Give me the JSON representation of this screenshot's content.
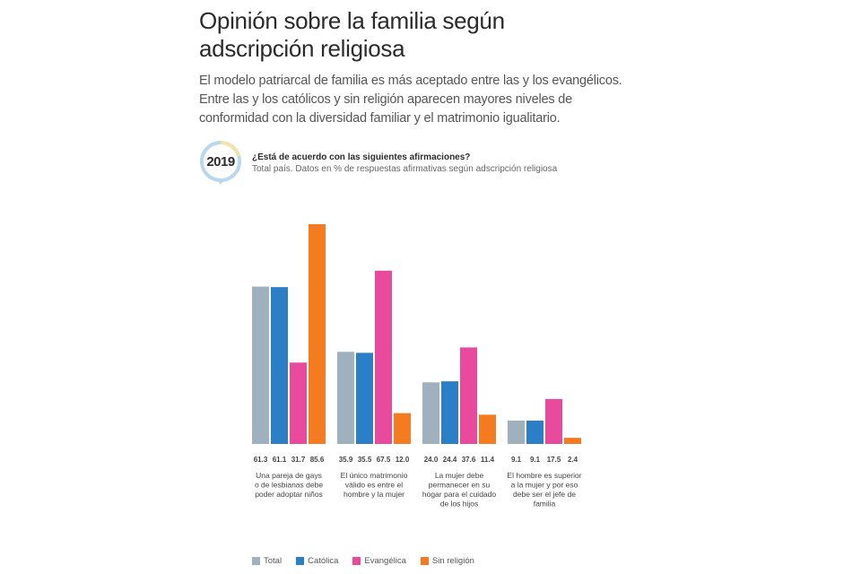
{
  "header": {
    "title": "Opinión sobre la familia según adscripción religiosa",
    "subtitle": "El modelo patriarcal de familia es más aceptado entre las y los evangélicos. Entre las y los católicos y sin religión aparecen mayores niveles de conformidad con la diversidad familiar y el matrimonio igualitario."
  },
  "badge": {
    "year": "2019",
    "icon": "year-ring-icon",
    "ring_color": "#b9d8ef",
    "ring_accent_color": "#f3e3a8"
  },
  "question": {
    "title": "¿Está de acuerdo con las siguientes afirmaciones?",
    "note": "Total país. Datos en % de respuestas afirmativas según adscripción religiosa"
  },
  "chart_data": {
    "type": "bar",
    "title": "¿Está de acuerdo con las siguientes afirmaciones?",
    "xlabel": "",
    "ylabel": "% de respuestas afirmativas",
    "ylim": [
      0,
      90
    ],
    "grid": false,
    "legend_position": "bottom",
    "categories": [
      "Una pareja de gays o de lesbianas debe poder adoptar niños",
      "El único matrimonio válido es entre el hombre y la mujer",
      "La mujer debe permanecer en su hogar para el cuidado de los hijos",
      "El hombre es superior a la mujer y por eso debe ser el jefe de familia"
    ],
    "category_lines": [
      [
        "Una pareja de gays",
        "o de lesbianas debe",
        "poder adoptar niños"
      ],
      [
        "El único matrimonio",
        "válido es entre el",
        "hombre y la mujer"
      ],
      [
        "La mujer debe",
        "permanecer en su",
        "hogar para el cuidado",
        "de los hijos"
      ],
      [
        "El hombre es superior",
        "a la mujer y por eso",
        "debe ser el jefe de",
        "familia"
      ]
    ],
    "series": [
      {
        "name": "Total",
        "color": "#9fb1bf",
        "values": [
          61.3,
          35.9,
          24.0,
          9.1
        ],
        "labels": [
          "61.3",
          "35.9",
          "24.0",
          "9.1"
        ]
      },
      {
        "name": "Católica",
        "color": "#2a7fc7",
        "values": [
          61.1,
          35.5,
          24.4,
          9.1
        ],
        "labels": [
          "61.1",
          "35.5",
          "24.4",
          "9.1"
        ]
      },
      {
        "name": "Evangélica",
        "color": "#ea4a9e",
        "values": [
          31.7,
          67.5,
          37.6,
          17.5
        ],
        "labels": [
          "31.7",
          "67.5",
          "37.6",
          "17.5"
        ]
      },
      {
        "name": "Sin religión",
        "color": "#f47b20",
        "values": [
          85.6,
          12.0,
          11.4,
          2.4
        ],
        "labels": [
          "85.6",
          "12.0",
          "11.4",
          "2.4"
        ]
      }
    ]
  }
}
